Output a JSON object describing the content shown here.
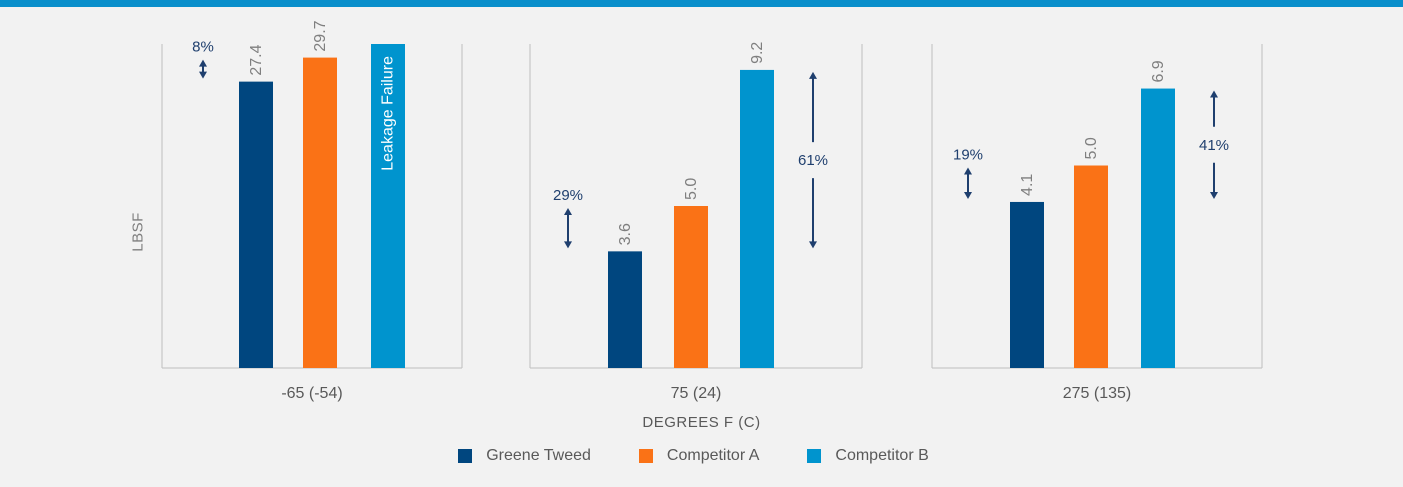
{
  "colors": {
    "top_bar": "#0a8fcb",
    "background": "#f2f2f2",
    "panel_line": "#bfbfbf",
    "arrow": "#1f3f6e",
    "value_label": "#7f7f7f",
    "axis_text": "#595959"
  },
  "chart_data": {
    "type": "bar",
    "ylabel": "LBSF",
    "xlabel": "DEGREES F (C)",
    "legend_position": "bottom",
    "grid": false,
    "series": [
      {
        "name": "Greene Tweed",
        "color": "#00467f"
      },
      {
        "name": "Competitor A",
        "color": "#fa7216"
      },
      {
        "name": "Competitor B",
        "color": "#0094ce"
      }
    ],
    "groups": [
      {
        "category": "-65 (-54)",
        "ymax": 31,
        "values": [
          27.4,
          29.7,
          null
        ],
        "labels": [
          "27.4",
          "29.7",
          "Leakage Failure"
        ],
        "annotations": [
          {
            "text": "8%",
            "from": 27.4,
            "to": 29.7,
            "side": "left"
          }
        ]
      },
      {
        "category": "75 (24)",
        "ymax": 10,
        "values": [
          3.6,
          5.0,
          9.2
        ],
        "labels": [
          "3.6",
          "5.0",
          "9.2"
        ],
        "annotations": [
          {
            "text": "29%",
            "from": 3.6,
            "to": 5.0,
            "side": "left"
          },
          {
            "text": "61%",
            "from": 3.6,
            "to": 9.2,
            "side": "right"
          }
        ]
      },
      {
        "category": "275 (135)",
        "ymax": 8,
        "values": [
          4.1,
          5.0,
          6.9
        ],
        "labels": [
          "4.1",
          "5.0",
          "6.9"
        ],
        "annotations": [
          {
            "text": "19%",
            "from": 4.1,
            "to": 5.0,
            "side": "left"
          },
          {
            "text": "41%",
            "from": 4.1,
            "to": 6.9,
            "side": "right"
          }
        ]
      }
    ]
  }
}
